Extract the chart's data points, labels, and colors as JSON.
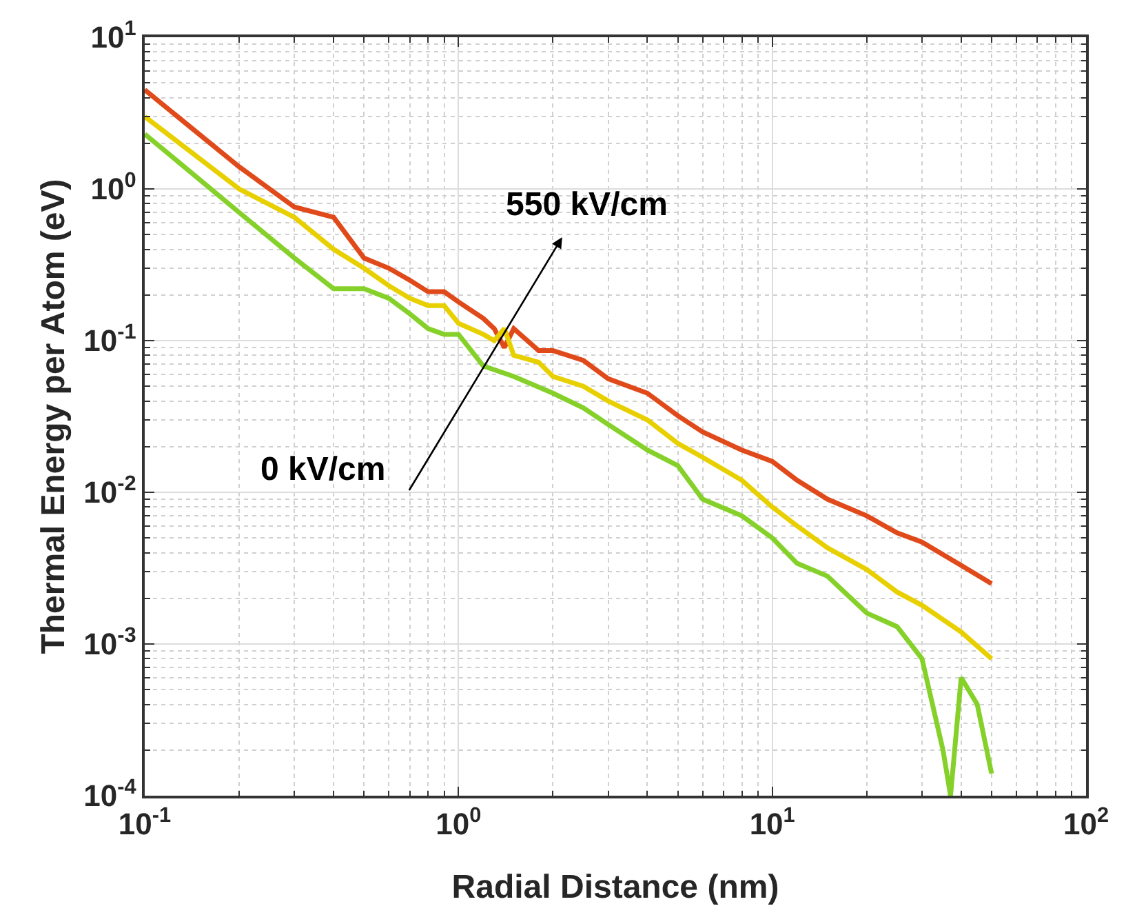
{
  "chart_data": {
    "type": "line",
    "xlabel": "Radial Distance (nm)",
    "ylabel": "Thermal Energy per Atom (eV)",
    "log": "xy",
    "grid": true,
    "line_style": "solid",
    "marker": "none",
    "xlim": [
      0.1,
      100
    ],
    "ylim": [
      0.0001,
      10
    ],
    "xticks": [
      {
        "value": 0.1,
        "label": "10$^{-1}$"
      },
      {
        "value": 1,
        "label": "10$^{0}$"
      },
      {
        "value": 10,
        "label": "10$^{1}$"
      },
      {
        "value": 100,
        "label": "10$^{2}$"
      }
    ],
    "yticks": [
      {
        "value": 0.0001,
        "label": "10$^{-4}$"
      },
      {
        "value": 0.001,
        "label": "10$^{-3}$"
      },
      {
        "value": 0.01,
        "label": "10$^{-2}$"
      },
      {
        "value": 0.1,
        "label": "10$^{-1}$"
      },
      {
        "value": 1,
        "label": "10$^{0}$"
      },
      {
        "value": 10,
        "label": "10$^{1}$"
      }
    ],
    "annotations": [
      "550 kV/cm",
      "0 kV/cm"
    ],
    "series": [
      {
        "color": "#e04a1a",
        "x": [
          0.1,
          0.2,
          0.3,
          0.4,
          0.5,
          0.6,
          0.7,
          0.8,
          0.9,
          1.0,
          1.2,
          1.3,
          1.4,
          1.5,
          1.8,
          2,
          2.5,
          3,
          4,
          5,
          6,
          8,
          10,
          12,
          15,
          20,
          25,
          30,
          40,
          50
        ],
        "values": [
          4.5,
          1.4,
          0.76,
          0.65,
          0.35,
          0.3,
          0.25,
          0.21,
          0.21,
          0.18,
          0.14,
          0.12,
          0.09,
          0.12,
          0.086,
          0.086,
          0.074,
          0.056,
          0.045,
          0.032,
          0.025,
          0.019,
          0.016,
          0.012,
          0.009,
          0.007,
          0.0054,
          0.0047,
          0.0033,
          0.0025
        ]
      },
      {
        "color": "#e8d000",
        "x": [
          0.1,
          0.2,
          0.3,
          0.4,
          0.5,
          0.6,
          0.7,
          0.8,
          0.9,
          1.0,
          1.2,
          1.3,
          1.4,
          1.5,
          1.8,
          2,
          2.5,
          3,
          4,
          5,
          6,
          8,
          10,
          12,
          15,
          20,
          25,
          30,
          40,
          50
        ],
        "values": [
          3.0,
          1.0,
          0.65,
          0.4,
          0.3,
          0.23,
          0.19,
          0.17,
          0.17,
          0.13,
          0.11,
          0.1,
          0.12,
          0.08,
          0.072,
          0.058,
          0.05,
          0.04,
          0.03,
          0.021,
          0.017,
          0.012,
          0.008,
          0.006,
          0.0043,
          0.0031,
          0.0022,
          0.0018,
          0.0012,
          0.0008
        ]
      },
      {
        "color": "#85d12a",
        "x": [
          0.1,
          0.2,
          0.3,
          0.4,
          0.5,
          0.6,
          0.7,
          0.8,
          0.9,
          1.0,
          1.2,
          1.5,
          2,
          2.5,
          3,
          4,
          5,
          6,
          8,
          10,
          12,
          15,
          20,
          25,
          30,
          35,
          37,
          40,
          45,
          50
        ],
        "values": [
          2.3,
          0.7,
          0.35,
          0.22,
          0.22,
          0.19,
          0.15,
          0.12,
          0.11,
          0.11,
          0.068,
          0.058,
          0.045,
          0.036,
          0.028,
          0.019,
          0.015,
          0.009,
          0.007,
          0.005,
          0.0034,
          0.0028,
          0.0016,
          0.0013,
          0.0008,
          0.0002,
          0.0001,
          0.0006,
          0.0004,
          0.00014
        ]
      }
    ]
  }
}
